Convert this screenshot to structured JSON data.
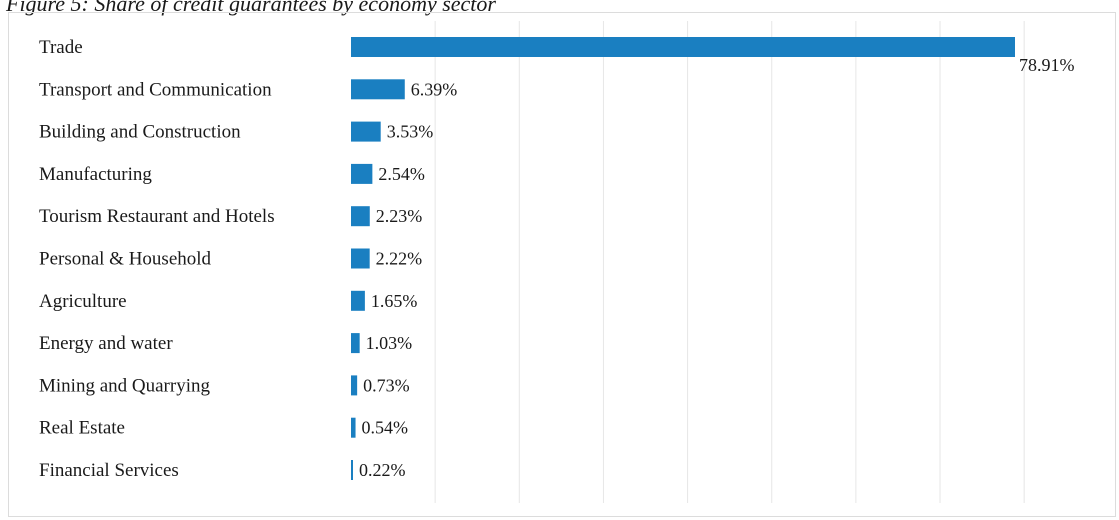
{
  "figure": {
    "title": "Figure 5: Share of credit guarantees by economy sector"
  },
  "colors": {
    "bar": "#1a7fc1",
    "grid": "#e6e6e6"
  },
  "chart_data": {
    "type": "bar",
    "orientation": "horizontal",
    "title": "Figure 5: Share of credit guarantees by economy sector",
    "xlabel": "",
    "ylabel": "",
    "xlim": [
      0,
      80
    ],
    "grid": true,
    "legend": "none",
    "categories": [
      "Trade",
      "Transport and Communication",
      "Building and Construction",
      "Manufacturing",
      "Tourism Restaurant and Hotels",
      "Personal & Household",
      "Agriculture",
      "Energy and water",
      "Mining and Quarrying",
      "Real Estate",
      "Financial Services"
    ],
    "values": [
      78.91,
      6.39,
      3.53,
      2.54,
      2.23,
      2.22,
      1.65,
      1.03,
      0.73,
      0.54,
      0.22
    ],
    "value_labels": [
      "78.91%",
      "6.39%",
      "3.53%",
      "2.54%",
      "2.23%",
      "2.22%",
      "1.65%",
      "1.03%",
      "0.73%",
      "0.54%",
      "0.22%"
    ]
  }
}
